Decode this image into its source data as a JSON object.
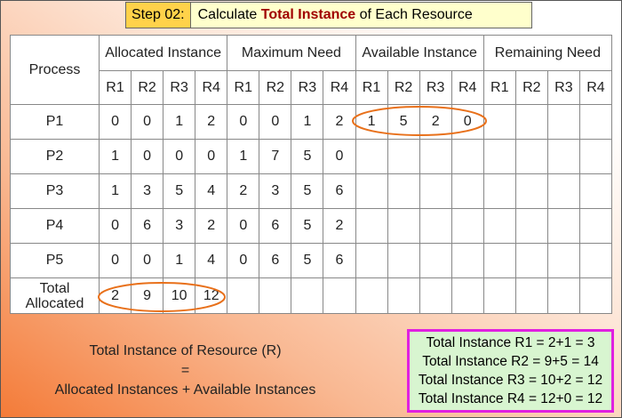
{
  "header": {
    "step": "Step 02:",
    "title_prefix": "Calculate ",
    "title_bold": "Total Instance",
    "title_suffix": " of Each Resource"
  },
  "table": {
    "process_header": "Process",
    "groups": [
      "Allocated Instance",
      "Maximum Need",
      "Available Instance",
      "Remaining Need"
    ],
    "resources": [
      "R1",
      "R2",
      "R3",
      "R4"
    ],
    "rows": [
      {
        "label": "P1",
        "allocated": [
          0,
          0,
          1,
          2
        ],
        "maximum": [
          0,
          0,
          1,
          2
        ],
        "available": [
          1,
          5,
          2,
          0
        ]
      },
      {
        "label": "P2",
        "allocated": [
          1,
          0,
          0,
          0
        ],
        "maximum": [
          1,
          7,
          5,
          0
        ]
      },
      {
        "label": "P3",
        "allocated": [
          1,
          3,
          5,
          4
        ],
        "maximum": [
          2,
          3,
          5,
          6
        ]
      },
      {
        "label": "P4",
        "allocated": [
          0,
          6,
          3,
          2
        ],
        "maximum": [
          0,
          6,
          5,
          2
        ]
      },
      {
        "label": "P5",
        "allocated": [
          0,
          0,
          1,
          4
        ],
        "maximum": [
          0,
          6,
          5,
          6
        ]
      }
    ],
    "total": {
      "label": "Total Allocated",
      "allocated": [
        2,
        9,
        10,
        12
      ]
    }
  },
  "formula": {
    "line1": "Total Instance of Resource (R)",
    "line2": "=",
    "line3": "Allocated Instances + Available Instances"
  },
  "results": [
    "Total Instance R1 = 2+1 = 3",
    "Total Instance R2 = 9+5 = 14",
    "Total Instance R3 = 10+2 = 12",
    "Total Instance R4 = 12+0 = 12"
  ]
}
